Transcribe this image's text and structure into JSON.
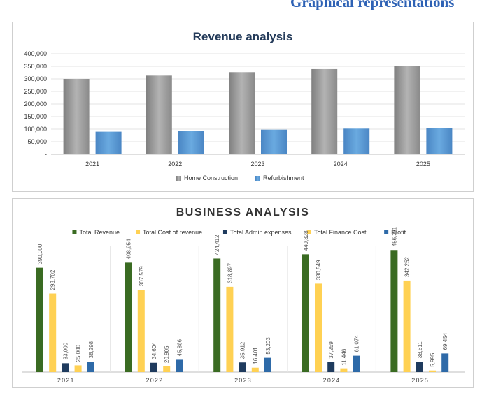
{
  "page": {
    "heading": "Graphical representations"
  },
  "chart_data": [
    {
      "type": "bar",
      "title": "Revenue analysis",
      "categories": [
        "2021",
        "2022",
        "2023",
        "2024",
        "2025"
      ],
      "ylim": [
        0,
        400000
      ],
      "yticks": [
        0,
        50000,
        100000,
        150000,
        200000,
        250000,
        300000,
        350000,
        400000
      ],
      "ytick_labels": [
        "-",
        "50,000",
        "100,000",
        "150,000",
        "200,000",
        "250,000",
        "300,000",
        "350,000",
        "400,000"
      ],
      "grid": true,
      "legend_position": "bottom",
      "series": [
        {
          "name": "Home Construction",
          "color": "#9b9b9b",
          "values": [
            300000,
            313000,
            327000,
            339000,
            352000
          ]
        },
        {
          "name": "Refurbishment",
          "color": "#5b9bd5",
          "values": [
            90000,
            93000,
            98000,
            102000,
            104000
          ]
        }
      ]
    },
    {
      "type": "bar",
      "title": "BUSINESS ANALYSIS",
      "categories": [
        "2021",
        "2022",
        "2023",
        "2024",
        "2025"
      ],
      "ylim": [
        0,
        470000
      ],
      "grid": false,
      "legend_position": "top",
      "series": [
        {
          "name": "Total  Revenue",
          "color": "#3a6b22",
          "values": [
            390000,
            408954,
            424412,
            440328,
            456311
          ],
          "labels": [
            "390,000",
            "408,954",
            "424,412",
            "440,328",
            "456,311"
          ]
        },
        {
          "name": "Total Cost of revenue",
          "color": "#ffd153",
          "values": [
            293702,
            307579,
            318897,
            330549,
            342252
          ],
          "labels": [
            "293,702",
            "307,579",
            "318,897",
            "330,549",
            "342,252"
          ]
        },
        {
          "name": "Total Admin expenses",
          "color": "#1f3b5e",
          "values": [
            33000,
            34604,
            35912,
            37259,
            38611
          ],
          "labels": [
            "33,000",
            "34,604",
            "35,912",
            "37,259",
            "38,611"
          ]
        },
        {
          "name": "Total Finance Cost",
          "color": "#ffd153",
          "values": [
            25000,
            20905,
            16401,
            11446,
            5995
          ],
          "labels": [
            "25,000",
            "20,905",
            "16,401",
            "11,446",
            "5,995"
          ]
        },
        {
          "name": "Profit",
          "color": "#2e6aa8",
          "values": [
            38298,
            45866,
            53203,
            61074,
            69454
          ],
          "labels": [
            "38,298",
            "45,866",
            "53,203",
            "61,074",
            "69,454"
          ]
        }
      ]
    }
  ]
}
